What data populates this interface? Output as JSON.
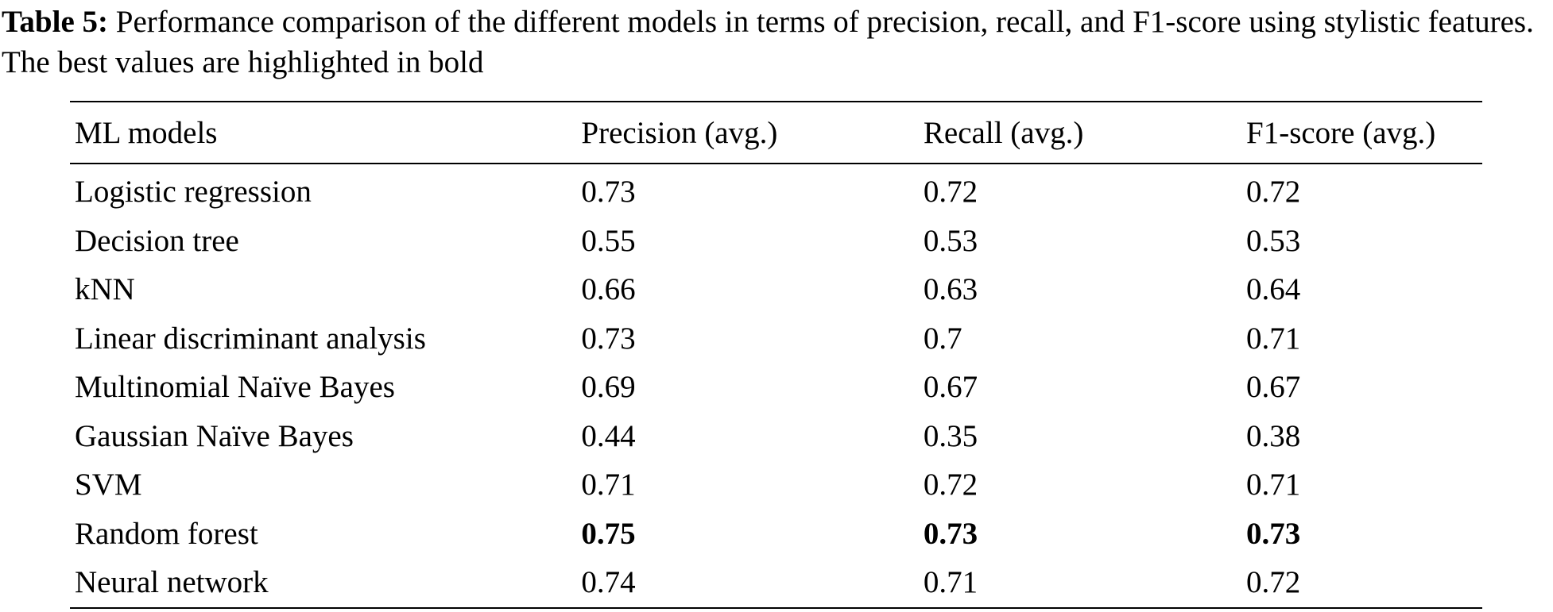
{
  "caption": {
    "label": "Table 5:",
    "text": " Performance comparison of the different models in terms of precision, recall, and F1-score using stylistic features. The best values are highlighted in bold"
  },
  "table": {
    "headers": [
      "ML models",
      "Precision (avg.)",
      "Recall (avg.)",
      "F1-score (avg.)"
    ],
    "rows": [
      {
        "model": "Logistic regression",
        "precision": "0.73",
        "recall": "0.72",
        "f1": "0.72"
      },
      {
        "model": "Decision tree",
        "precision": "0.55",
        "recall": "0.53",
        "f1": "0.53"
      },
      {
        "model": "kNN",
        "precision": "0.66",
        "recall": "0.63",
        "f1": "0.64"
      },
      {
        "model": "Linear discriminant analysis",
        "precision": "0.73",
        "recall": "0.7",
        "f1": "0.71"
      },
      {
        "model": "Multinomial Naïve Bayes",
        "precision": "0.69",
        "recall": "0.67",
        "f1": "0.67"
      },
      {
        "model": "Gaussian Naïve Bayes",
        "precision": "0.44",
        "recall": "0.35",
        "f1": "0.38"
      },
      {
        "model": "SVM",
        "precision": "0.71",
        "recall": "0.72",
        "f1": "0.71"
      },
      {
        "model": "Random forest",
        "precision": "0.75",
        "recall": "0.73",
        "f1": "0.73"
      },
      {
        "model": "Neural network",
        "precision": "0.74",
        "recall": "0.71",
        "f1": "0.72"
      }
    ]
  }
}
